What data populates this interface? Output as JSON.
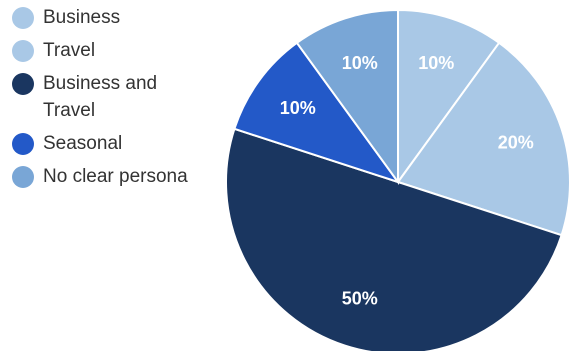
{
  "chart_data": {
    "type": "pie",
    "categories": [
      "Business",
      "Travel",
      "Business and Travel",
      "Seasonal",
      "No clear persona"
    ],
    "values": [
      10,
      20,
      50,
      10,
      10
    ],
    "value_labels": [
      "10%",
      "20%",
      "50%",
      "10%",
      "10%"
    ],
    "colors": [
      "#a9c8e6",
      "#a9c8e6",
      "#1a3660",
      "#2359c8",
      "#79a6d6"
    ],
    "legend": {
      "placement": "left",
      "entries": [
        {
          "label": "Business",
          "color": "#a9c8e6"
        },
        {
          "label": "Travel",
          "color": "#a9c8e6"
        },
        {
          "label": "Business and Travel",
          "color": "#1a3660"
        },
        {
          "label": "Seasonal",
          "color": "#2359c8"
        },
        {
          "label": "No clear persona",
          "color": "#79a6d6"
        }
      ]
    }
  }
}
